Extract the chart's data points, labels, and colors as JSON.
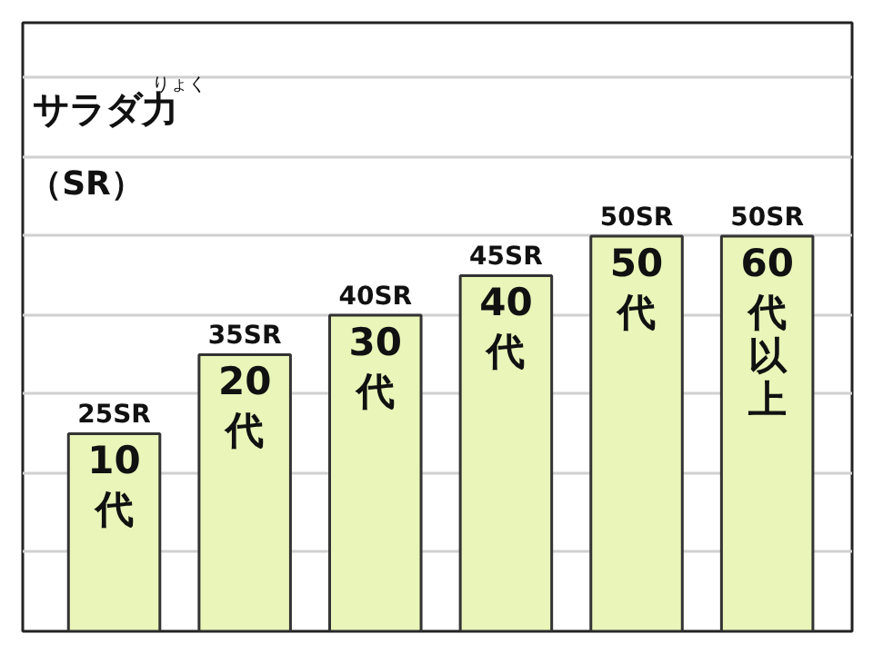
{
  "chart_data": {
    "type": "bar",
    "title": "サラダ力",
    "annotations": [
      "りょく"
    ],
    "ylabel": "（SR）",
    "categories": [
      "10代",
      "20代",
      "30代",
      "40代",
      "50代",
      "60代以上"
    ],
    "values": [
      25,
      35,
      40,
      45,
      50,
      50
    ],
    "value_labels": [
      "25SR",
      "35SR",
      "40SR",
      "45SR",
      "50SR",
      "50SR"
    ],
    "color": "#e9f5b9",
    "ylim": [
      0,
      77
    ],
    "yticks": [
      {
        "value": 10,
        "label": null
      },
      {
        "value": 20,
        "label": null
      },
      {
        "value": 30,
        "label": null
      },
      {
        "value": 40,
        "label": null
      },
      {
        "value": 50,
        "label": null
      },
      {
        "value": 60,
        "label": null
      },
      {
        "value": 70,
        "label": null
      }
    ],
    "tick_labels": false,
    "grid": "y"
  }
}
